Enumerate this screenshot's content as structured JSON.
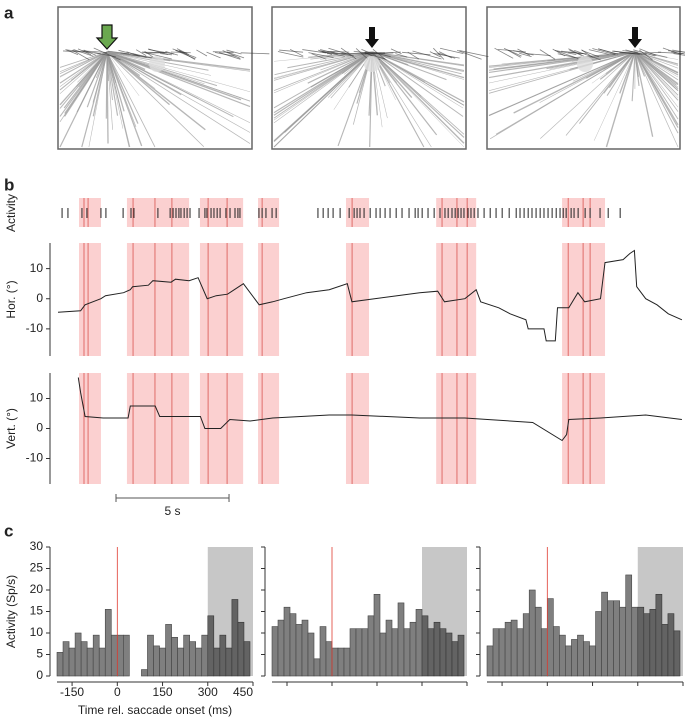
{
  "panel_labels": [
    "a",
    "b",
    "c"
  ],
  "chart_data": [
    {
      "type": "raster",
      "ylabel": "Activity",
      "xlim": [
        0,
        27.65
      ],
      "color": "#222222",
      "values": [
        0.18,
        0.44,
        1.06,
        1.28,
        1.9,
        2.12,
        2.88,
        3.23,
        3.36,
        4.42,
        4.96,
        5.09,
        5.22,
        5.35,
        5.44,
        5.58,
        5.71,
        5.84,
        6.24,
        6.5,
        6.59,
        6.77,
        6.9,
        7.04,
        7.17,
        7.43,
        7.61,
        7.83,
        7.96,
        8.05,
        8.89,
        9.03,
        9.2,
        9.47,
        9.65,
        11.5,
        11.73,
        11.95,
        12.17,
        12.48,
        12.88,
        13.1,
        13.23,
        13.36,
        13.54,
        13.81,
        14.07,
        14.25,
        14.47,
        14.69,
        14.96,
        15.22,
        15.53,
        15.8,
        15.93,
        16.11,
        16.37,
        16.64,
        16.9,
        17.12,
        17.26,
        17.43,
        17.57,
        17.7,
        17.83,
        17.96,
        18.14,
        18.27,
        18.41,
        18.58,
        18.85,
        19.12,
        19.38,
        19.65,
        19.96,
        20.27,
        20.44,
        20.62,
        20.8,
        20.97,
        21.15,
        21.33,
        21.5,
        21.68,
        21.86,
        22.04,
        22.21,
        22.35,
        22.48,
        22.7,
        22.83,
        23.01,
        23.32,
        23.54,
        23.98,
        24.34,
        24.87
      ],
      "epochs": [
        [
          0.93,
          1.9
        ],
        [
          3.05,
          5.8
        ],
        [
          6.28,
          8.19
        ],
        [
          8.85,
          9.78
        ],
        [
          12.74,
          13.76
        ],
        [
          16.73,
          18.5
        ],
        [
          22.3,
          24.2
        ]
      ],
      "epoch_color": "#fbd0d0",
      "events": [
        1.15,
        1.33,
        3.32,
        4.29,
        5.04,
        6.64,
        7.48,
        9.03,
        13.01,
        16.99,
        17.65,
        18.1,
        22.57,
        23.23,
        23.54
      ],
      "event_color": "#d9534f",
      "scale_bar": {
        "value": 5,
        "label": "5 s"
      }
    },
    {
      "type": "line",
      "ylabel": "Hor. (°)",
      "xlim": [
        0,
        27.65
      ],
      "ylim": [
        -19,
        18.5
      ],
      "yticks": [
        -10,
        0,
        10
      ],
      "color": "#222222",
      "x": [
        0,
        1.0,
        1.2,
        1.9,
        2.1,
        2.9,
        3.2,
        3.3,
        4.0,
        4.2,
        5.0,
        5.2,
        5.8,
        6.2,
        6.6,
        7.0,
        7.5,
        7.8,
        8.2,
        8.9,
        9.5,
        10,
        11,
        12,
        12.8,
        13.0,
        14,
        15,
        16,
        16.8,
        17.1,
        18,
        18.5,
        18.7,
        19.5,
        20,
        20.7,
        20.8,
        21.5,
        21.6,
        22.0,
        22.1,
        22.6,
        23,
        23.3,
        24,
        24.2,
        25,
        25.3,
        25.5,
        25.6,
        26,
        26.5,
        27,
        27.6
      ],
      "values": [
        -4.5,
        -4,
        -2,
        0,
        1,
        2,
        3,
        4,
        4.5,
        6,
        5.5,
        6.5,
        6,
        7,
        0,
        1,
        1.5,
        3,
        5,
        -2,
        -1,
        0,
        2,
        3,
        5,
        -1,
        0,
        1,
        2,
        2.5,
        -1,
        0,
        3,
        -1,
        -3,
        -5,
        -7,
        -10,
        -10,
        -14,
        -14,
        -3,
        -3,
        2,
        -1,
        0,
        12,
        13,
        15,
        16,
        4,
        0,
        -2,
        -5,
        -7
      ]
    },
    {
      "type": "line",
      "ylabel": "Vert. (°)",
      "xlim": [
        0,
        27.65
      ],
      "ylim": [
        -18.5,
        18.5
      ],
      "yticks": [
        -10,
        0,
        10
      ],
      "color": "#222222",
      "x": [
        0.9,
        1.0,
        1.2,
        2,
        3.1,
        3.2,
        4.3,
        4.5,
        6.3,
        6.5,
        7.2,
        7.6,
        8.5,
        9.5,
        12,
        13,
        16,
        18,
        19,
        21,
        22.3,
        22.5,
        22.6,
        24,
        26,
        27.6
      ],
      "values": [
        17,
        12,
        4,
        3.5,
        3.5,
        7.5,
        7.5,
        4,
        4,
        0,
        0,
        3,
        2.5,
        3.5,
        4.5,
        4.5,
        3.5,
        3.5,
        3,
        2,
        -4,
        -2,
        3,
        3.5,
        4.5,
        3
      ]
    },
    {
      "type": "histogram",
      "xlabel": "Time rel. saccade onset (ms)",
      "ylabel": "Activity (Sp/s)",
      "tick_labels": true,
      "bins": [
        -200,
        -180,
        -160,
        -140,
        -120,
        -100,
        -80,
        -60,
        -40,
        -20,
        0,
        20,
        40,
        60,
        80,
        100,
        120,
        140,
        160,
        180,
        200,
        220,
        240,
        260,
        280,
        300,
        320,
        340,
        360,
        380,
        400,
        420,
        440
      ],
      "values": [
        5.5,
        8,
        6.5,
        10,
        8,
        6.5,
        9.5,
        6.5,
        15.5,
        9.5,
        9.5,
        9.5,
        0,
        0,
        1.5,
        9.5,
        7,
        6.5,
        12,
        9,
        6.5,
        9.5,
        8,
        6.5,
        9.5,
        14,
        6.5,
        9.5,
        6.5,
        17.8,
        12.5,
        8
      ],
      "xlim": [
        -200,
        450
      ],
      "ylim": [
        0,
        30
      ],
      "xticks": [
        -150,
        0,
        150,
        300,
        450
      ],
      "yticks": [
        0,
        5,
        10,
        15,
        20,
        25,
        30
      ],
      "color": "#7f7f7f",
      "vline": 0,
      "vline_color": "#e03c31",
      "shade": [
        300,
        450
      ]
    },
    {
      "type": "histogram",
      "tick_labels": false,
      "bins": [
        -200,
        -180,
        -160,
        -140,
        -120,
        -100,
        -80,
        -60,
        -40,
        -20,
        0,
        20,
        40,
        60,
        80,
        100,
        120,
        140,
        160,
        180,
        200,
        220,
        240,
        260,
        280,
        300,
        320,
        340,
        360,
        380,
        400,
        420,
        440
      ],
      "values": [
        11.5,
        13,
        16,
        14.5,
        12,
        13,
        10,
        4,
        11.5,
        8,
        6.5,
        6.5,
        6.5,
        11,
        11,
        11,
        14,
        19,
        10,
        13,
        11,
        17,
        11,
        12.5,
        15.5,
        14,
        11,
        12.5,
        11,
        10,
        8,
        9.5
      ],
      "xlim": [
        -200,
        450
      ],
      "ylim": [
        0,
        30
      ],
      "xticks": [
        -150,
        0,
        150,
        300,
        450
      ],
      "yticks": [
        0,
        5,
        10,
        15,
        20,
        25,
        30
      ],
      "color": "#7f7f7f",
      "vline": 0,
      "vline_color": "#e03c31",
      "shade": [
        300,
        450
      ]
    },
    {
      "type": "histogram",
      "tick_labels": false,
      "bins": [
        -200,
        -180,
        -160,
        -140,
        -120,
        -100,
        -80,
        -60,
        -40,
        -20,
        0,
        20,
        40,
        60,
        80,
        100,
        120,
        140,
        160,
        180,
        200,
        220,
        240,
        260,
        280,
        300,
        320,
        340,
        360,
        380,
        400,
        420,
        440
      ],
      "values": [
        7,
        11,
        11,
        12.5,
        13,
        11,
        14.5,
        20,
        16,
        11,
        18,
        11.5,
        9.5,
        7,
        8.5,
        9.5,
        8,
        7,
        15,
        19.5,
        17.5,
        17.5,
        16,
        23.5,
        16,
        16,
        14.5,
        15.5,
        19,
        12,
        14.5,
        10.5
      ],
      "xlim": [
        -200,
        450
      ],
      "ylim": [
        0,
        30
      ],
      "xticks": [
        -150,
        0,
        150,
        300,
        450
      ],
      "yticks": [
        0,
        5,
        10,
        15,
        20,
        25,
        30
      ],
      "color": "#7f7f7f",
      "vline": 0,
      "vline_color": "#e03c31",
      "shade": [
        300,
        450
      ]
    }
  ]
}
